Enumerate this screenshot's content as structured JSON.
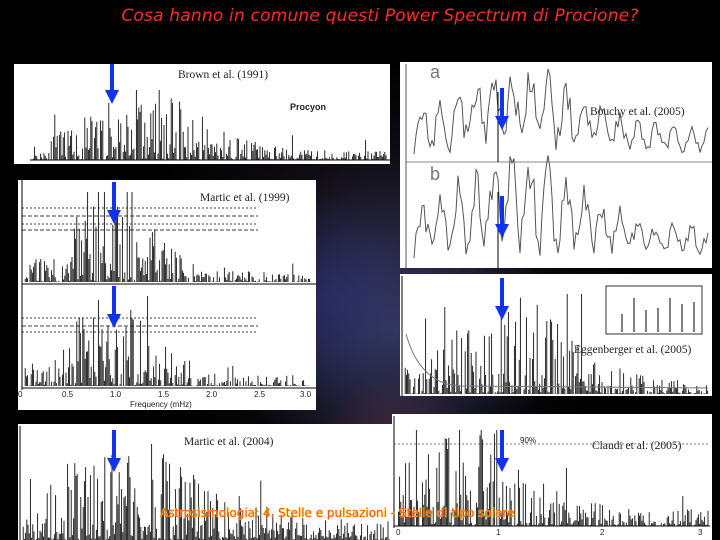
{
  "title": "Cosa hanno in comune questi Power Spectrum di Procione?",
  "panels": {
    "brown": {
      "citation": "Brown et al. (1991)",
      "label": "Procyon"
    },
    "bouchy": {
      "citation": "Bouchy et al. (2005)",
      "sub_a": "a",
      "sub_b": "b"
    },
    "martic1999": {
      "citation": "Martic et al. (1999)",
      "x_ticks": [
        "0",
        "0.5",
        "1.0",
        "1.5",
        "2.0",
        "2.5",
        "3.0"
      ],
      "x_axis_label": "Frequency (mHz)"
    },
    "eggenberger": {
      "citation": "Eggenberger et al. (2005)"
    },
    "martic2004": {
      "citation": "Martic et al. (2004)"
    },
    "claudi": {
      "citation": "Claudi et al. (2005)",
      "percent_label": "90%",
      "x_ticks": [
        "0",
        "1",
        "2",
        "3"
      ]
    }
  },
  "footer": "Astrosismologia: 4. Stelle e pulsazioni - Stelle di tipo solare",
  "colors": {
    "title": "#ff2a2a",
    "arrow": "#1133ee",
    "footer": "#ff3a3a"
  }
}
